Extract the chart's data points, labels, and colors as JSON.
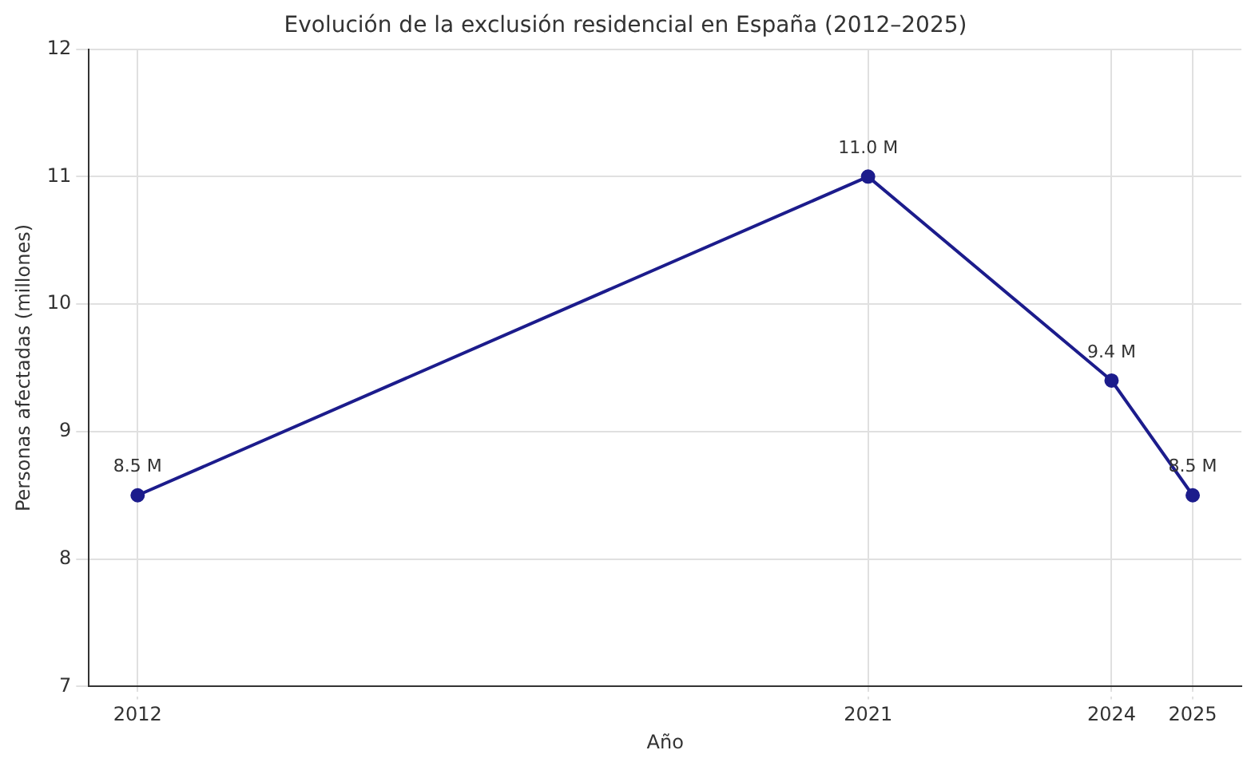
{
  "chart_data": {
    "type": "line",
    "title": "Evolución de la exclusión residencial en España (2012–2025)",
    "xlabel": "Año",
    "ylabel": "Personas afectadas (millones)",
    "x": [
      2012,
      2021,
      2024,
      2025
    ],
    "series": [
      {
        "color": "#1c1c8c",
        "values": [
          8.5,
          11.0,
          9.4,
          8.5
        ],
        "value_labels": [
          "8.5 M",
          "11.0 M",
          "9.4 M",
          "8.5 M"
        ]
      }
    ],
    "xlim": [
      2011.4,
      2025.6
    ],
    "xticks": [
      2012,
      2021,
      2024,
      2025
    ],
    "ylim": [
      7,
      12
    ],
    "yticks": [
      7,
      8,
      9,
      10,
      11,
      12
    ],
    "grid": true,
    "legend": false,
    "marker": "circle",
    "line_style": "solid"
  }
}
